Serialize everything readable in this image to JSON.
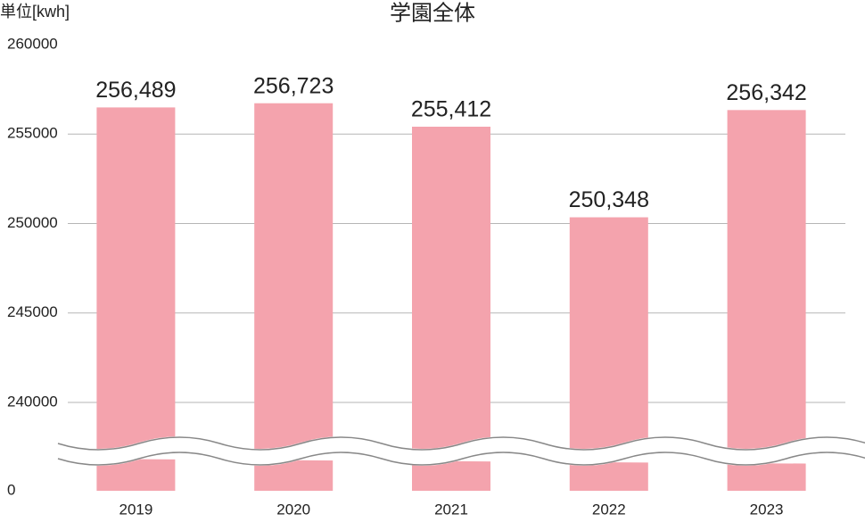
{
  "chart_data": {
    "type": "bar",
    "title": "学園全体",
    "y_label": "単位[kwh]",
    "categories": [
      "2019",
      "2020",
      "2021",
      "2022",
      "2023"
    ],
    "values": [
      256489,
      256723,
      255412,
      250348,
      256342
    ],
    "value_labels": [
      "256,489",
      "256,723",
      "255,412",
      "250,348",
      "256,342"
    ],
    "color": "#f4a3ad",
    "ylim": [
      0,
      260000
    ],
    "yticks": [
      0,
      240000,
      245000,
      250000,
      255000,
      260000
    ],
    "axis_break": true,
    "grid": true
  }
}
